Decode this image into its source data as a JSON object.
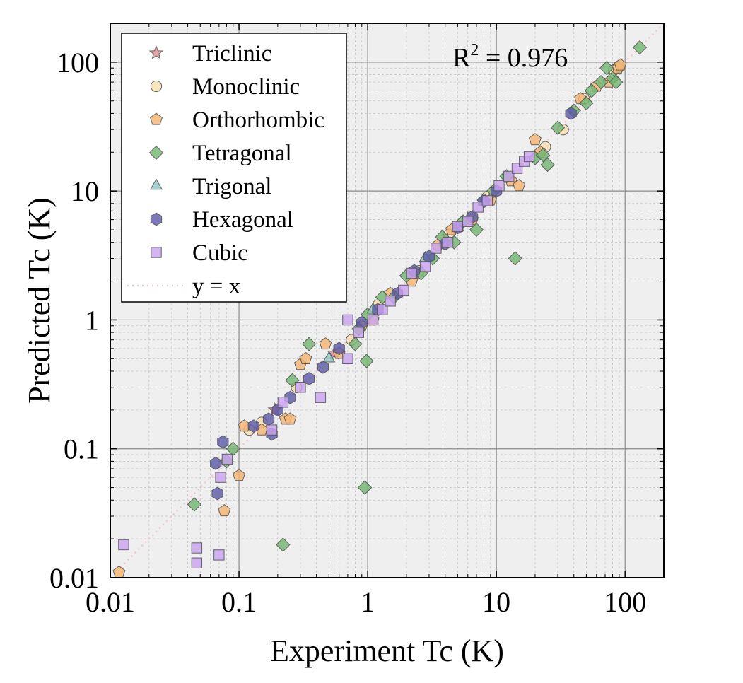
{
  "chart_data": {
    "type": "scatter",
    "title": "",
    "xlabel": "Experiment Tc (K)",
    "ylabel": "Predicted Tc (K)",
    "x_scale": "log",
    "y_scale": "log",
    "xlim": [
      0.01,
      200
    ],
    "ylim": [
      0.01,
      200
    ],
    "x_ticks": [
      {
        "value": 0.01,
        "label": "0.01"
      },
      {
        "value": 0.1,
        "label": "0.1"
      },
      {
        "value": 1,
        "label": "1"
      },
      {
        "value": 10,
        "label": "10"
      },
      {
        "value": 100,
        "label": "100"
      }
    ],
    "y_ticks": [
      {
        "value": 0.01,
        "label": "0.01"
      },
      {
        "value": 0.1,
        "label": "0.1"
      },
      {
        "value": 1,
        "label": "1"
      },
      {
        "value": 10,
        "label": "10"
      },
      {
        "value": 100,
        "label": "100"
      }
    ],
    "grid": true,
    "minor_grid": true,
    "legend_position": "top-left",
    "annotation": {
      "prefix": "R",
      "superscript": "2",
      "suffix": " = 0.976"
    },
    "reference_line": {
      "name": "y = x",
      "color": "#f4c6cc"
    },
    "series": [
      {
        "name": "Triclinic",
        "marker": "star",
        "color": "#d98a8f",
        "points": [
          [
            0.19,
            0.2
          ],
          [
            0.55,
            0.55
          ],
          [
            2.3,
            2.3
          ],
          [
            6.0,
            6.1
          ]
        ]
      },
      {
        "name": "Monoclinic",
        "marker": "circle",
        "color": "#f5deb0",
        "points": [
          [
            0.12,
            0.14
          ],
          [
            0.15,
            0.16
          ],
          [
            0.28,
            0.3
          ],
          [
            0.75,
            0.7
          ],
          [
            1.2,
            1.3
          ],
          [
            2.5,
            2.4
          ],
          [
            4.3,
            4.6
          ],
          [
            8.5,
            9.0
          ],
          [
            24,
            22
          ],
          [
            33,
            30
          ],
          [
            48,
            52
          ],
          [
            82,
            87
          ],
          [
            90,
            92
          ]
        ]
      },
      {
        "name": "Orthorhombic",
        "marker": "pentagon",
        "color": "#f5b470",
        "points": [
          [
            0.0117,
            0.011
          ],
          [
            0.077,
            0.033
          ],
          [
            0.1,
            0.062
          ],
          [
            0.11,
            0.15
          ],
          [
            0.15,
            0.14
          ],
          [
            0.23,
            0.17
          ],
          [
            0.25,
            0.17
          ],
          [
            0.3,
            0.45
          ],
          [
            0.33,
            0.5
          ],
          [
            0.47,
            0.65
          ],
          [
            0.6,
            0.55
          ],
          [
            0.9,
            0.9
          ],
          [
            1.1,
            1.0
          ],
          [
            1.5,
            1.6
          ],
          [
            2.2,
            2.0
          ],
          [
            3.5,
            3.8
          ],
          [
            4.5,
            5.0
          ],
          [
            6.5,
            6.0
          ],
          [
            9.0,
            8.5
          ],
          [
            13,
            12
          ],
          [
            15,
            11
          ],
          [
            20,
            25
          ],
          [
            22,
            20
          ],
          [
            45,
            52
          ],
          [
            60,
            65
          ],
          [
            75,
            70
          ],
          [
            88,
            90
          ],
          [
            92,
            95
          ]
        ]
      },
      {
        "name": "Tetragonal",
        "marker": "diamond",
        "color": "#6fb56f",
        "points": [
          [
            0.045,
            0.037
          ],
          [
            0.08,
            0.08
          ],
          [
            0.09,
            0.1
          ],
          [
            0.22,
            0.018
          ],
          [
            0.26,
            0.34
          ],
          [
            0.35,
            0.65
          ],
          [
            0.95,
            0.05
          ],
          [
            0.98,
            0.48
          ],
          [
            0.8,
            0.65
          ],
          [
            0.85,
            0.85
          ],
          [
            1.0,
            1.1
          ],
          [
            1.3,
            1.5
          ],
          [
            1.6,
            1.5
          ],
          [
            2.0,
            2.2
          ],
          [
            2.6,
            2.3
          ],
          [
            3.2,
            3.0
          ],
          [
            3.8,
            4.4
          ],
          [
            4.7,
            4.0
          ],
          [
            5.5,
            5.8
          ],
          [
            7.0,
            5.0
          ],
          [
            8.0,
            8.5
          ],
          [
            9.5,
            10
          ],
          [
            12,
            13
          ],
          [
            14,
            3.0
          ],
          [
            20,
            18
          ],
          [
            23,
            19
          ],
          [
            25,
            16
          ],
          [
            30,
            31
          ],
          [
            40,
            42
          ],
          [
            50,
            48
          ],
          [
            55,
            60
          ],
          [
            65,
            70
          ],
          [
            72,
            90
          ],
          [
            80,
            75
          ],
          [
            85,
            70
          ],
          [
            130,
            130
          ]
        ]
      },
      {
        "name": "Trigonal",
        "marker": "triangle",
        "color": "#8fc7c3",
        "points": [
          [
            0.5,
            0.5
          ],
          [
            1.1,
            1.2
          ],
          [
            2.8,
            3.0
          ],
          [
            5.0,
            5.2
          ],
          [
            8.0,
            8.2
          ]
        ]
      },
      {
        "name": "Hexagonal",
        "marker": "hexagon",
        "color": "#5b58a8",
        "points": [
          [
            0.066,
            0.077
          ],
          [
            0.068,
            0.045
          ],
          [
            0.075,
            0.113
          ],
          [
            0.13,
            0.15
          ],
          [
            0.17,
            0.17
          ],
          [
            0.18,
            0.13
          ],
          [
            0.2,
            0.2
          ],
          [
            0.25,
            0.25
          ],
          [
            0.35,
            0.35
          ],
          [
            0.45,
            0.43
          ],
          [
            0.6,
            0.6
          ],
          [
            0.9,
            0.95
          ],
          [
            1.2,
            1.2
          ],
          [
            1.7,
            1.6
          ],
          [
            2.3,
            2.4
          ],
          [
            3.0,
            3.1
          ],
          [
            4.0,
            3.9
          ],
          [
            5.0,
            5.2
          ],
          [
            6.5,
            6.3
          ],
          [
            8.0,
            8.3
          ],
          [
            10,
            10
          ],
          [
            38,
            40
          ]
        ]
      },
      {
        "name": "Cubic",
        "marker": "square",
        "color": "#c9a3f0",
        "points": [
          [
            0.0127,
            0.018
          ],
          [
            0.047,
            0.017
          ],
          [
            0.047,
            0.013
          ],
          [
            0.07,
            0.015
          ],
          [
            0.072,
            0.06
          ],
          [
            0.081,
            0.083
          ],
          [
            0.18,
            0.14
          ],
          [
            0.22,
            0.23
          ],
          [
            0.3,
            0.3
          ],
          [
            0.43,
            0.25
          ],
          [
            0.7,
            1.0
          ],
          [
            0.7,
            0.5
          ],
          [
            0.85,
            0.8
          ],
          [
            1.1,
            1.0
          ],
          [
            1.3,
            1.2
          ],
          [
            1.5,
            1.4
          ],
          [
            1.9,
            1.7
          ],
          [
            2.2,
            2.3
          ],
          [
            2.8,
            2.6
          ],
          [
            3.4,
            3.6
          ],
          [
            4.2,
            4.0
          ],
          [
            5.0,
            5.3
          ],
          [
            6.0,
            5.8
          ],
          [
            7.2,
            7.5
          ],
          [
            8.5,
            8.4
          ],
          [
            10.5,
            11
          ],
          [
            12.5,
            13
          ],
          [
            14.5,
            15
          ],
          [
            16.5,
            17
          ],
          [
            18,
            18.5
          ]
        ]
      }
    ]
  }
}
